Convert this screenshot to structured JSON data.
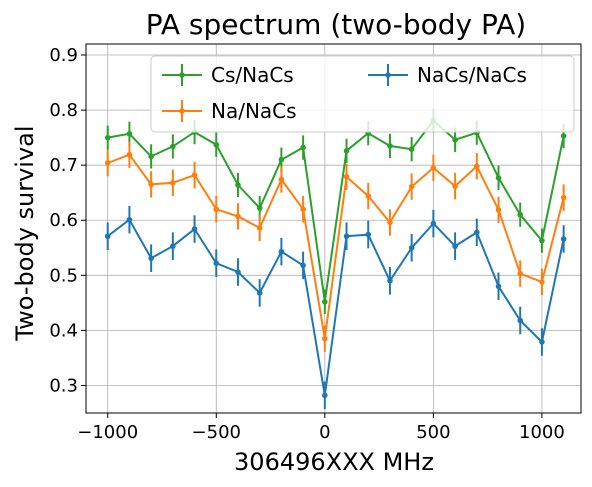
{
  "chart_data": {
    "type": "line",
    "title": "PA spectrum (two-body PA)",
    "xlabel": "306496XXX MHz",
    "ylabel": "Two-body survival",
    "xlim": [
      -1100,
      1180
    ],
    "ylim": [
      0.25,
      0.92
    ],
    "xticks": [
      -1000,
      -500,
      0,
      500,
      1000
    ],
    "xtick_labels": [
      "−1000",
      "−500",
      "0",
      "500",
      "1000"
    ],
    "yticks": [
      0.3,
      0.4,
      0.5,
      0.6,
      0.7,
      0.8,
      0.9
    ],
    "ytick_labels": [
      "0.3",
      "0.4",
      "0.5",
      "0.6",
      "0.7",
      "0.8",
      "0.9"
    ],
    "grid": true,
    "legend": {
      "placement": "top",
      "columns": 2
    },
    "x": [
      -1000,
      -900,
      -800,
      -700,
      -600,
      -500,
      -400,
      -300,
      -200,
      -100,
      0,
      100,
      200,
      300,
      400,
      500,
      600,
      700,
      800,
      900,
      1000,
      1100
    ],
    "series": [
      {
        "name": "Cs/NaCs",
        "color": "#2ca02c",
        "values": [
          0.75,
          0.757,
          0.716,
          0.734,
          0.76,
          0.737,
          0.664,
          0.622,
          0.71,
          0.732,
          0.452,
          0.726,
          0.758,
          0.735,
          0.729,
          0.781,
          0.746,
          0.759,
          0.677,
          0.61,
          0.563,
          0.753
        ],
        "errors": [
          0.022,
          0.022,
          0.022,
          0.022,
          0.022,
          0.022,
          0.022,
          0.022,
          0.022,
          0.022,
          0.022,
          0.022,
          0.022,
          0.022,
          0.022,
          0.022,
          0.022,
          0.022,
          0.022,
          0.022,
          0.022,
          0.022
        ]
      },
      {
        "name": "Na/NaCs",
        "color": "#ff7f0e",
        "values": [
          0.704,
          0.719,
          0.665,
          0.668,
          0.682,
          0.62,
          0.607,
          0.586,
          0.674,
          0.62,
          0.385,
          0.679,
          0.644,
          0.596,
          0.661,
          0.695,
          0.662,
          0.698,
          0.619,
          0.503,
          0.488,
          0.641
        ],
        "errors": [
          0.024,
          0.024,
          0.024,
          0.024,
          0.024,
          0.024,
          0.024,
          0.024,
          0.024,
          0.024,
          0.024,
          0.024,
          0.024,
          0.024,
          0.024,
          0.024,
          0.024,
          0.024,
          0.024,
          0.024,
          0.024,
          0.024
        ]
      },
      {
        "name": "NaCs/NaCs",
        "color": "#1f77b4",
        "values": [
          0.571,
          0.601,
          0.531,
          0.553,
          0.584,
          0.522,
          0.506,
          0.468,
          0.543,
          0.518,
          0.282,
          0.571,
          0.574,
          0.49,
          0.55,
          0.594,
          0.553,
          0.578,
          0.48,
          0.418,
          0.379,
          0.566
        ],
        "errors": [
          0.025,
          0.025,
          0.025,
          0.025,
          0.025,
          0.025,
          0.025,
          0.025,
          0.025,
          0.025,
          0.025,
          0.025,
          0.025,
          0.025,
          0.025,
          0.025,
          0.025,
          0.025,
          0.025,
          0.025,
          0.025,
          0.025
        ]
      }
    ]
  }
}
